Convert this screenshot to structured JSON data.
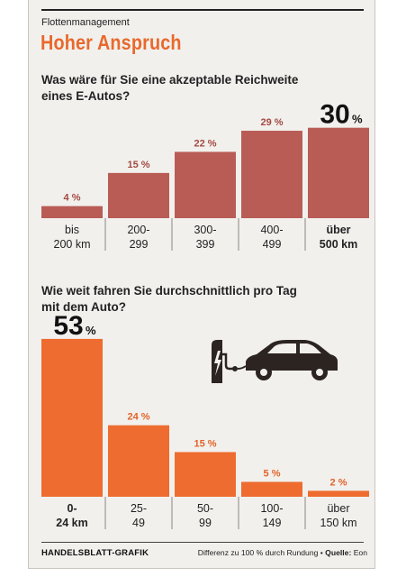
{
  "header": {
    "kicker": "Flottenmanagement",
    "title": "Hoher Anspruch"
  },
  "chart_data": [
    {
      "type": "bar",
      "title": "Was wäre für Sie eine akzeptable Reichweite eines E-Autos?",
      "title_lines": [
        "Was wäre für Sie eine akzeptable Reichweite",
        "eines E-Autos?"
      ],
      "categories": [
        [
          "bis",
          "200 km"
        ],
        [
          "200-",
          "299"
        ],
        [
          "300-",
          "399"
        ],
        [
          "400-",
          "499"
        ],
        [
          "über",
          "500 km"
        ]
      ],
      "values": [
        4,
        15,
        22,
        29,
        30
      ],
      "value_labels": [
        "4 %",
        "15 %",
        "22 %",
        "29 %",
        "30"
      ],
      "highlight_index": 4,
      "highlight_unit": "%",
      "ylim": [
        0,
        32
      ],
      "bar_color": "#b85c55",
      "label_color": "#a24a43"
    },
    {
      "type": "bar",
      "title": "Wie weit fahren Sie durchschnittlich pro Tag mit dem Auto?",
      "title_lines": [
        "Wie weit fahren Sie durchschnittlich pro Tag",
        "mit dem Auto?"
      ],
      "categories": [
        [
          "0-",
          "24 km"
        ],
        [
          "25-",
          "49"
        ],
        [
          "50-",
          "99"
        ],
        [
          "100-",
          "149"
        ],
        [
          "über",
          "150 km"
        ]
      ],
      "values": [
        53,
        24,
        15,
        5,
        2
      ],
      "value_labels": [
        "53",
        "24 %",
        "15 %",
        "5 %",
        "2 %"
      ],
      "highlight_index": 0,
      "highlight_unit": "%",
      "ylim": [
        0,
        56
      ],
      "bar_color": "#ee6c2f",
      "label_color": "#e0642a"
    }
  ],
  "footer": {
    "credit": "HANDELSBLATT-GRAFIK",
    "note": "Differenz zu 100 % durch Rundung •",
    "source_label": "Quelle:",
    "source": "Eon"
  },
  "colors": {
    "accent": "#e8692c",
    "background": "#f2f0ed",
    "icon": "#2b2420"
  },
  "icons": [
    "charging-station-icon",
    "car-icon"
  ]
}
